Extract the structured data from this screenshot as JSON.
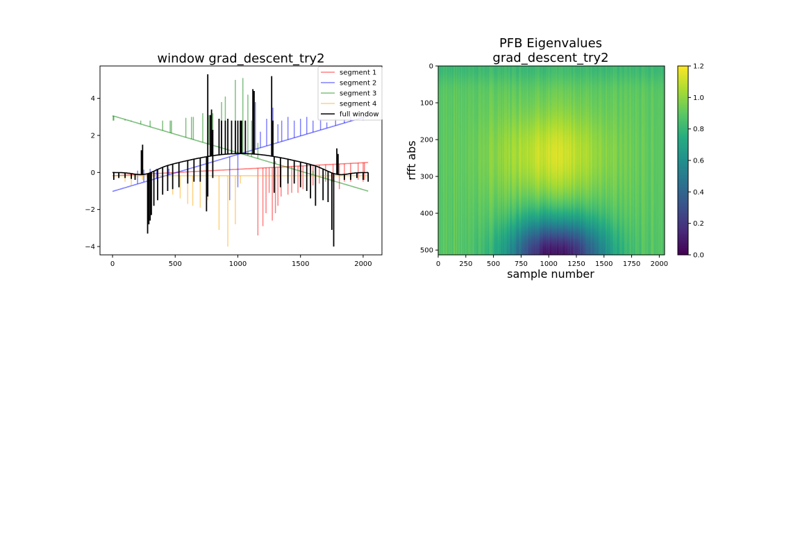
{
  "chart_data": [
    {
      "type": "line",
      "title": "window grad_descent_try2",
      "xlabel": "",
      "ylabel": "",
      "xlim": [
        -100,
        2150
      ],
      "ylim": [
        -4.45,
        5.75
      ],
      "xticks": [
        0,
        500,
        1000,
        1500,
        2000
      ],
      "yticks": [
        -4,
        -2,
        0,
        2,
        4
      ],
      "ytick_labels": [
        "−4",
        "−2",
        "0",
        "2",
        "4"
      ],
      "grid": false,
      "legend_position": "upper right",
      "series": [
        {
          "name": "segment 1",
          "color": "#ff0000",
          "alpha": 0.5,
          "range": [
            0,
            511
          ],
          "baseline": {
            "type": "linear",
            "from": -0.18,
            "to": 0.0
          },
          "spikes": [
            [
              1160,
              -3.4
            ],
            [
              1200,
              -2.9
            ],
            [
              1225,
              -2.2
            ],
            [
              1250,
              -1.1
            ],
            [
              1275,
              -2.6
            ],
            [
              1300,
              -2.2
            ],
            [
              1320,
              -1.8
            ],
            [
              1345,
              -1.3
            ],
            [
              1400,
              -1.2
            ],
            [
              1430,
              -1.1
            ],
            [
              1480,
              -1.1
            ],
            [
              1520,
              -0.9
            ],
            [
              1550,
              -0.8
            ],
            [
              1600,
              -0.7
            ],
            [
              1650,
              -0.6
            ],
            [
              1700,
              -0.5
            ],
            [
              1760,
              -0.5
            ],
            [
              1810,
              -0.9
            ],
            [
              1850,
              -0.5
            ],
            [
              1900,
              -0.5
            ],
            [
              1960,
              -0.4
            ],
            [
              2000,
              -0.5
            ],
            [
              2010,
              -0.4
            ]
          ]
        },
        {
          "name": "segment 2",
          "color": "#0000ff",
          "alpha": 0.5,
          "range": [
            512,
            1023
          ],
          "baseline": {
            "type": "linear",
            "from": 0.0,
            "to": 1.02
          },
          "spikes": [
            [
              935,
              -1.5
            ],
            [
              1000,
              -0.8
            ],
            [
              1140,
              3.8
            ],
            [
              1180,
              2.2
            ],
            [
              1230,
              2.9
            ],
            [
              1280,
              3.5
            ],
            [
              1320,
              2.6
            ],
            [
              1350,
              2.8
            ],
            [
              1400,
              3.0
            ],
            [
              1450,
              2.8
            ],
            [
              1500,
              2.9
            ],
            [
              1550,
              3.0
            ],
            [
              1600,
              2.8
            ],
            [
              1660,
              2.9
            ],
            [
              1710,
              2.7
            ],
            [
              1780,
              2.9
            ],
            [
              1820,
              2.6
            ],
            [
              1850,
              2.9
            ],
            [
              1900,
              3.0
            ],
            [
              1950,
              2.9
            ],
            [
              2000,
              2.8
            ],
            [
              2050,
              3.4
            ],
            [
              300,
              0.2
            ],
            [
              350,
              0.2
            ],
            [
              400,
              0.2
            ],
            [
              450,
              0.2
            ],
            [
              200,
              0.1
            ],
            [
              250,
              0.15
            ]
          ]
        },
        {
          "name": "segment 3",
          "color": "#008000",
          "alpha": 0.5,
          "range": [
            1024,
            1535
          ],
          "baseline": {
            "type": "linear",
            "from": 1.02,
            "to": 0.0
          },
          "spikes": [
            [
              5,
              2.8
            ],
            [
              10,
              2.8
            ],
            [
              100,
              2.8
            ],
            [
              125,
              2.8
            ],
            [
              150,
              2.8
            ],
            [
              225,
              2.8
            ],
            [
              300,
              2.8
            ],
            [
              400,
              2.8
            ],
            [
              460,
              2.8
            ],
            [
              470,
              2.8
            ],
            [
              585,
              2.95
            ],
            [
              630,
              3.0
            ],
            [
              645,
              3.0
            ],
            [
              720,
              3.2
            ],
            [
              770,
              3.1
            ],
            [
              800,
              3.2
            ],
            [
              870,
              3.8
            ],
            [
              900,
              4.1
            ],
            [
              980,
              5.0
            ],
            [
              1040,
              5.1
            ],
            [
              1080,
              4.2
            ],
            [
              1110,
              2.8
            ],
            [
              1160,
              1.6
            ],
            [
              1300,
              0.6
            ],
            [
              1450,
              0.2
            ],
            [
              1600,
              0.1
            ],
            [
              1700,
              0.1
            ]
          ]
        },
        {
          "name": "segment 4",
          "color": "#ffa500",
          "alpha": 0.5,
          "range": [
            1536,
            2047
          ],
          "baseline": {
            "type": "linear",
            "from": -0.18,
            "to": -0.18
          },
          "spikes": [
            [
              100,
              -0.5
            ],
            [
              150,
              -0.7
            ],
            [
              240,
              -0.4
            ],
            [
              290,
              -0.9
            ],
            [
              400,
              -0.8
            ],
            [
              480,
              -1.2
            ],
            [
              540,
              -1.4
            ],
            [
              600,
              -1.7
            ],
            [
              640,
              -1.8
            ],
            [
              700,
              -1.9
            ],
            [
              760,
              -1.5
            ],
            [
              850,
              -3.1
            ],
            [
              920,
              -4.0
            ],
            [
              980,
              -2.8
            ],
            [
              1020,
              -0.6
            ]
          ]
        },
        {
          "name": "full window",
          "color": "#000000",
          "alpha": 1.0,
          "range": [
            0,
            2047
          ],
          "baseline": {
            "type": "cosine",
            "center": 1024,
            "peak": 1.02,
            "edge": 0.0,
            "dip_at": [
              256,
              1792
            ],
            "dip_depth": -0.25
          },
          "spikes": [
            [
              280,
              -3.3
            ],
            [
              290,
              -2.8
            ],
            [
              300,
              -2.6
            ],
            [
              310,
              -2.3
            ],
            [
              330,
              -1.8
            ],
            [
              360,
              -1.5
            ],
            [
              400,
              -1.2
            ],
            [
              440,
              -1.0
            ],
            [
              480,
              -0.9
            ],
            [
              530,
              -0.8
            ],
            [
              600,
              -0.6
            ],
            [
              650,
              -0.5
            ],
            [
              700,
              -0.5
            ],
            [
              750,
              -2.1
            ],
            [
              760,
              -1.3
            ],
            [
              800,
              -0.3
            ],
            [
              240,
              1.5
            ],
            [
              230,
              1.2
            ],
            [
              760,
              5.3
            ],
            [
              780,
              3.1
            ],
            [
              790,
              3.4
            ],
            [
              800,
              2.3
            ],
            [
              850,
              2.9
            ],
            [
              870,
              2.8
            ],
            [
              900,
              2.8
            ],
            [
              920,
              2.9
            ],
            [
              950,
              2.8
            ],
            [
              980,
              2.8
            ],
            [
              1000,
              2.8
            ],
            [
              1020,
              2.8
            ],
            [
              1030,
              2.8
            ],
            [
              1060,
              2.8
            ],
            [
              1120,
              4.5
            ],
            [
              1130,
              4.4
            ],
            [
              1270,
              5.2
            ],
            [
              1280,
              2.8
            ],
            [
              1290,
              -1.1
            ],
            [
              1340,
              -0.8
            ],
            [
              1400,
              -0.6
            ],
            [
              1450,
              -0.6
            ],
            [
              1500,
              -0.8
            ],
            [
              1550,
              -1.0
            ],
            [
              1580,
              -1.4
            ],
            [
              1620,
              -1.8
            ],
            [
              1680,
              -1.5
            ],
            [
              1720,
              -1.6
            ],
            [
              1750,
              -3.1
            ],
            [
              1765,
              -4.0
            ],
            [
              1790,
              1.3
            ],
            [
              1800,
              1.0
            ],
            [
              1850,
              -0.4
            ],
            [
              1900,
              -0.4
            ],
            [
              1950,
              -0.3
            ],
            [
              2000,
              -0.4
            ],
            [
              2040,
              -0.5
            ],
            [
              180,
              -0.4
            ],
            [
              150,
              -0.35
            ],
            [
              100,
              -0.3
            ],
            [
              50,
              -0.3
            ],
            [
              10,
              -0.4
            ]
          ]
        }
      ]
    },
    {
      "type": "heatmap",
      "title": "PFB Eigenvalues\ngrad_descent_try2",
      "title_lines": [
        "PFB Eigenvalues",
        "grad_descent_try2"
      ],
      "xlabel": "sample number",
      "ylabel": "rfft abs",
      "x_extent": [
        0,
        2048
      ],
      "y_extent": [
        0,
        513
      ],
      "xticks": [
        0,
        250,
        500,
        750,
        1000,
        1250,
        1500,
        1750,
        2000
      ],
      "yticks": [
        0,
        100,
        200,
        300,
        400,
        500
      ],
      "colormap": "viridis",
      "colorbar": {
        "vmin": 0.0,
        "vmax": 1.2,
        "ticks": [
          "0.0",
          "0.2",
          "0.4",
          "0.6",
          "0.8",
          "1.0",
          "1.2"
        ]
      },
      "value_model": {
        "plateau_center": [
          1024,
          240
        ],
        "plateau_value": 1.12,
        "low_band_center": [
          1070,
          513
        ],
        "low_band_value": 0.05,
        "typical_value": 0.95
      }
    }
  ]
}
